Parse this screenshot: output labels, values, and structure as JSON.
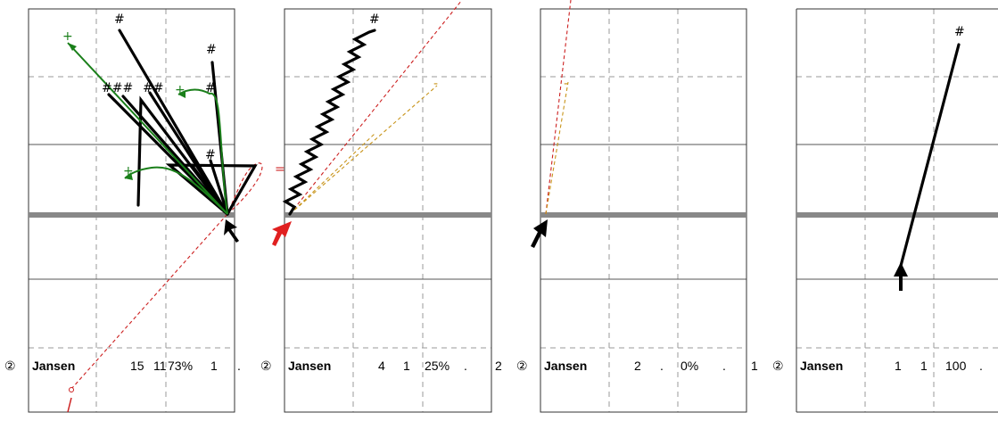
{
  "panels": [
    {
      "player_badge": "②",
      "player_name": "Jansen",
      "stats": [
        "15",
        "11",
        "73%",
        "1",
        "."
      ],
      "shot_marks": [
        "#",
        "#",
        "###",
        "##",
        "#",
        "#"
      ],
      "pass_marks": [
        "+",
        "+",
        "+"
      ],
      "foul_mark": "="
    },
    {
      "player_badge": "②",
      "player_name": "Jansen",
      "stats": [
        "4",
        "1",
        "25%",
        ".",
        "2"
      ],
      "shot_marks": [
        "#"
      ],
      "miss_marks": [
        "-",
        "-"
      ]
    },
    {
      "player_badge": "②",
      "player_name": "Jansen",
      "stats": [
        "2",
        ".",
        "0%",
        ".",
        "1"
      ],
      "miss_marks": [
        "-"
      ]
    },
    {
      "player_badge": "②",
      "player_name": "Jansen",
      "stats": [
        "1",
        "1",
        "100",
        "."
      ],
      "shot_marks": [
        "#"
      ]
    }
  ],
  "colors": {
    "shot": "#000000",
    "pass": "#1a7f1a",
    "miss_red": "#cc1f1f",
    "miss_orange": "#c8941a",
    "baseline": "#888888"
  }
}
